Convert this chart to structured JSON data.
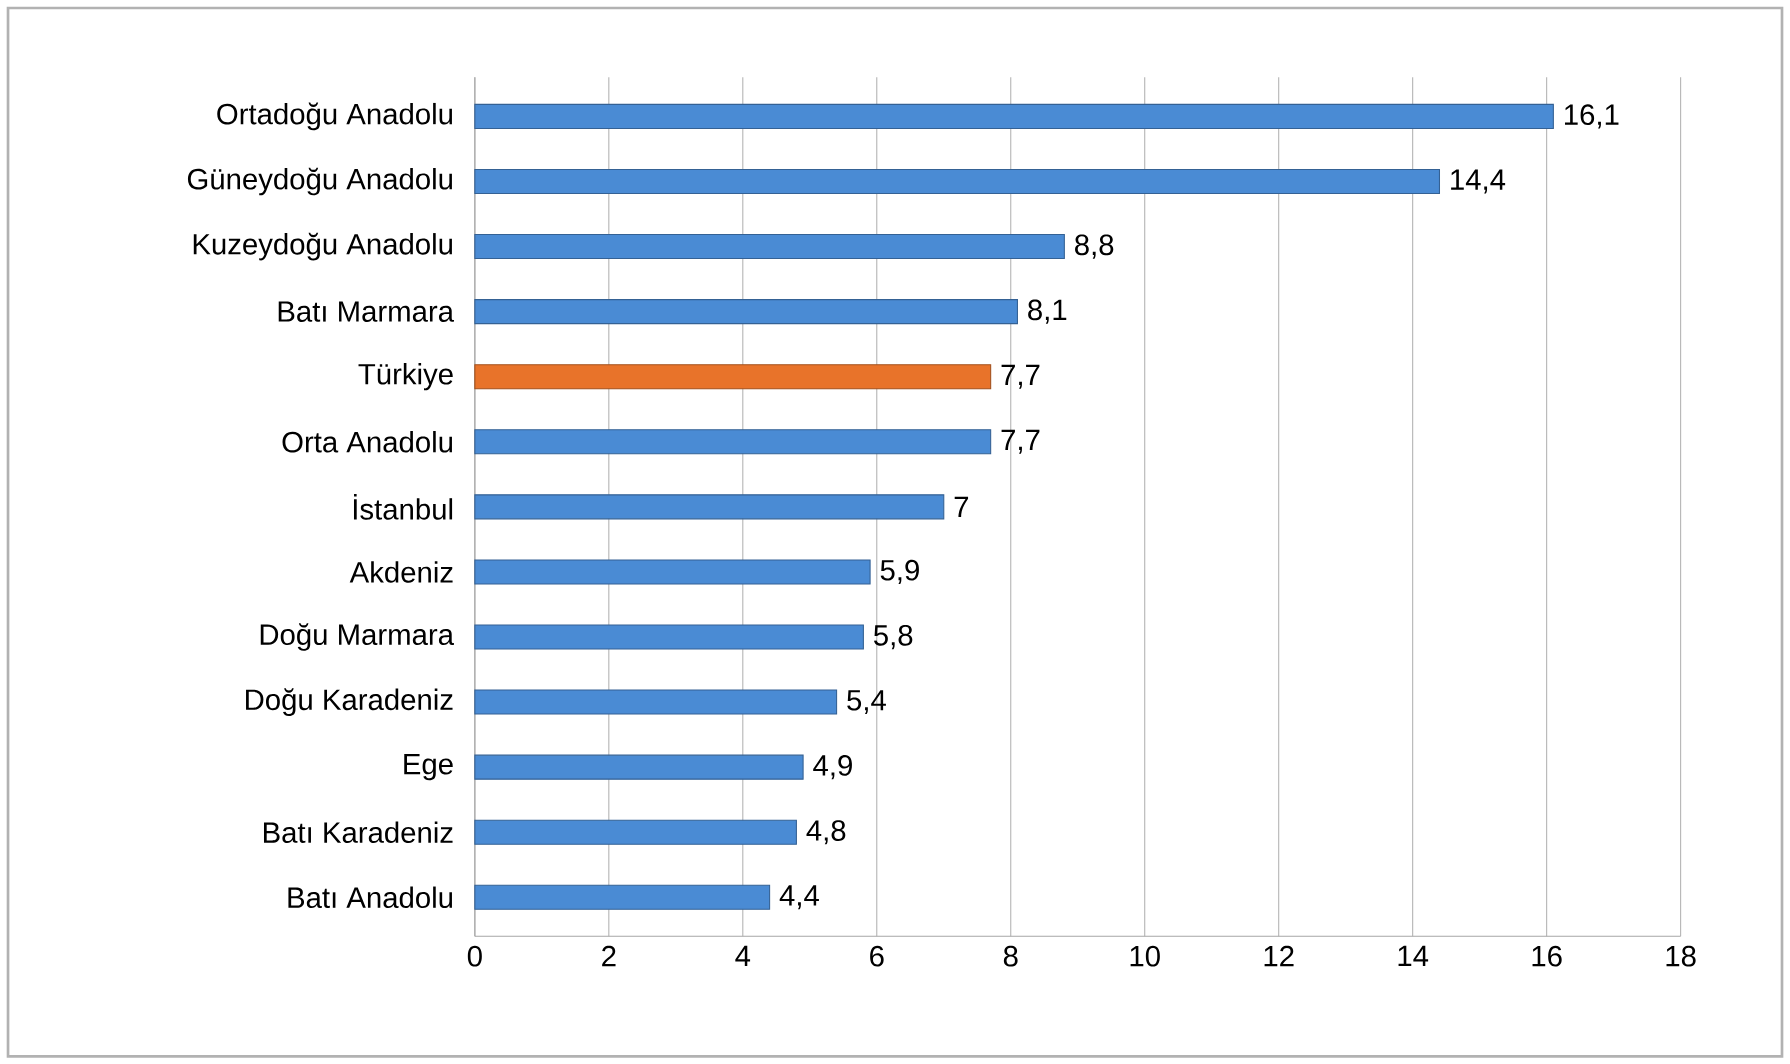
{
  "chart_data": {
    "type": "bar",
    "orientation": "horizontal",
    "categories": [
      "Ortadoğu Anadolu",
      "Güneydoğu Anadolu",
      "Kuzeydoğu Anadolu",
      "Batı Marmara",
      "Türkiye",
      "Orta Anadolu",
      "İstanbul",
      "Akdeniz",
      "Doğu Marmara",
      "Doğu Karadeniz",
      "Ege",
      "Batı Karadeniz",
      "Batı Anadolu"
    ],
    "values": [
      16.1,
      14.4,
      8.8,
      8.1,
      7.7,
      7.7,
      7,
      5.9,
      5.8,
      5.4,
      4.9,
      4.8,
      4.4
    ],
    "value_labels": [
      "16,1",
      "14,4",
      "8,8",
      "8,1",
      "7,7",
      "7,7",
      "7",
      "5,9",
      "5,8",
      "5,4",
      "4,9",
      "4,8",
      "4,4"
    ],
    "colors": [
      "#4a8bd4",
      "#4a8bd4",
      "#4a8bd4",
      "#4a8bd4",
      "#e8732a",
      "#4a8bd4",
      "#4a8bd4",
      "#4a8bd4",
      "#4a8bd4",
      "#4a8bd4",
      "#4a8bd4",
      "#4a8bd4",
      "#4a8bd4"
    ],
    "xlim": [
      0,
      18
    ],
    "xticks": [
      0,
      2,
      4,
      6,
      8,
      10,
      12,
      14,
      16,
      18
    ],
    "grid": "x"
  }
}
